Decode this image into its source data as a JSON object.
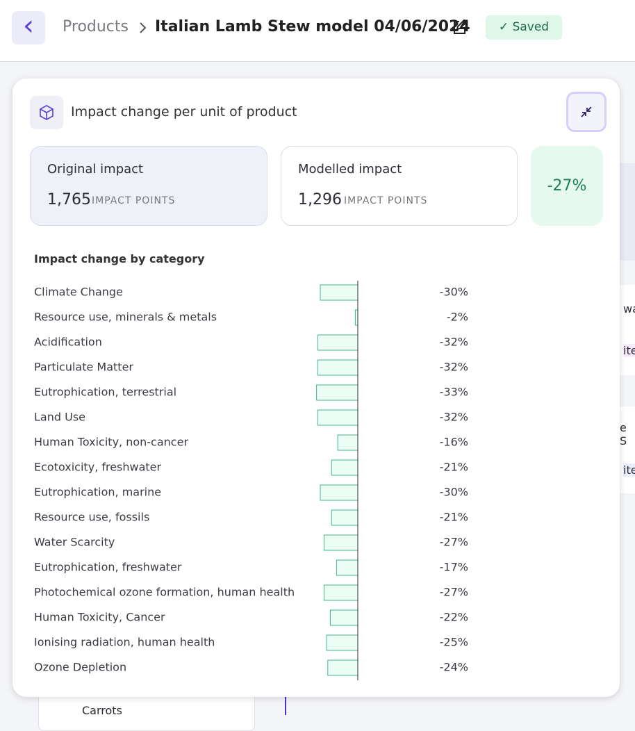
{
  "header": {
    "back": "‹",
    "breadcrumb": "Products",
    "title": "Italian Lamb Stew model 04/06/2024",
    "status": "Saved"
  },
  "panel": {
    "title": "Impact change per unit of product",
    "original": {
      "label": "Original impact",
      "value": "1,765",
      "unit": "IMPACT POINTS"
    },
    "modelled": {
      "label": "Modelled impact",
      "value": "1,296",
      "unit": "IMPACT POINTS"
    },
    "change": "-27%",
    "section_title": "Impact change by category"
  },
  "chart_data": {
    "type": "bar",
    "orientation": "horizontal",
    "color": "#ecfdf5",
    "edge_color": "#3fb68b",
    "categories": [
      "Climate Change",
      "Resource use, minerals & metals",
      "Acidification",
      "Particulate Matter",
      "Eutrophication, terrestrial",
      "Land Use",
      "Human Toxicity, non-cancer",
      "Ecotoxicity, freshwater",
      "Eutrophication, marine",
      "Resource use, fossils",
      "Water Scarcity",
      "Eutrophication, freshwater",
      "Photochemical ozone formation, human health",
      "Human Toxicity, Cancer",
      "Ionising radiation, human health",
      "Ozone Depletion"
    ],
    "values": [
      -30,
      -2,
      -32,
      -32,
      -33,
      -32,
      -16,
      -21,
      -30,
      -21,
      -27,
      -17,
      -27,
      -22,
      -25,
      -24
    ],
    "value_labels": [
      "-30%",
      "-2%",
      "-32%",
      "-32%",
      "-33%",
      "-32%",
      "-16%",
      "-21%",
      "-30%",
      "-21%",
      "-27%",
      "-17%",
      "-27%",
      "-22%",
      "-25%",
      "-24%"
    ]
  },
  "background": {
    "fragments": [
      "wa",
      "ite",
      "e S",
      "ite"
    ],
    "item": "Carrots"
  }
}
